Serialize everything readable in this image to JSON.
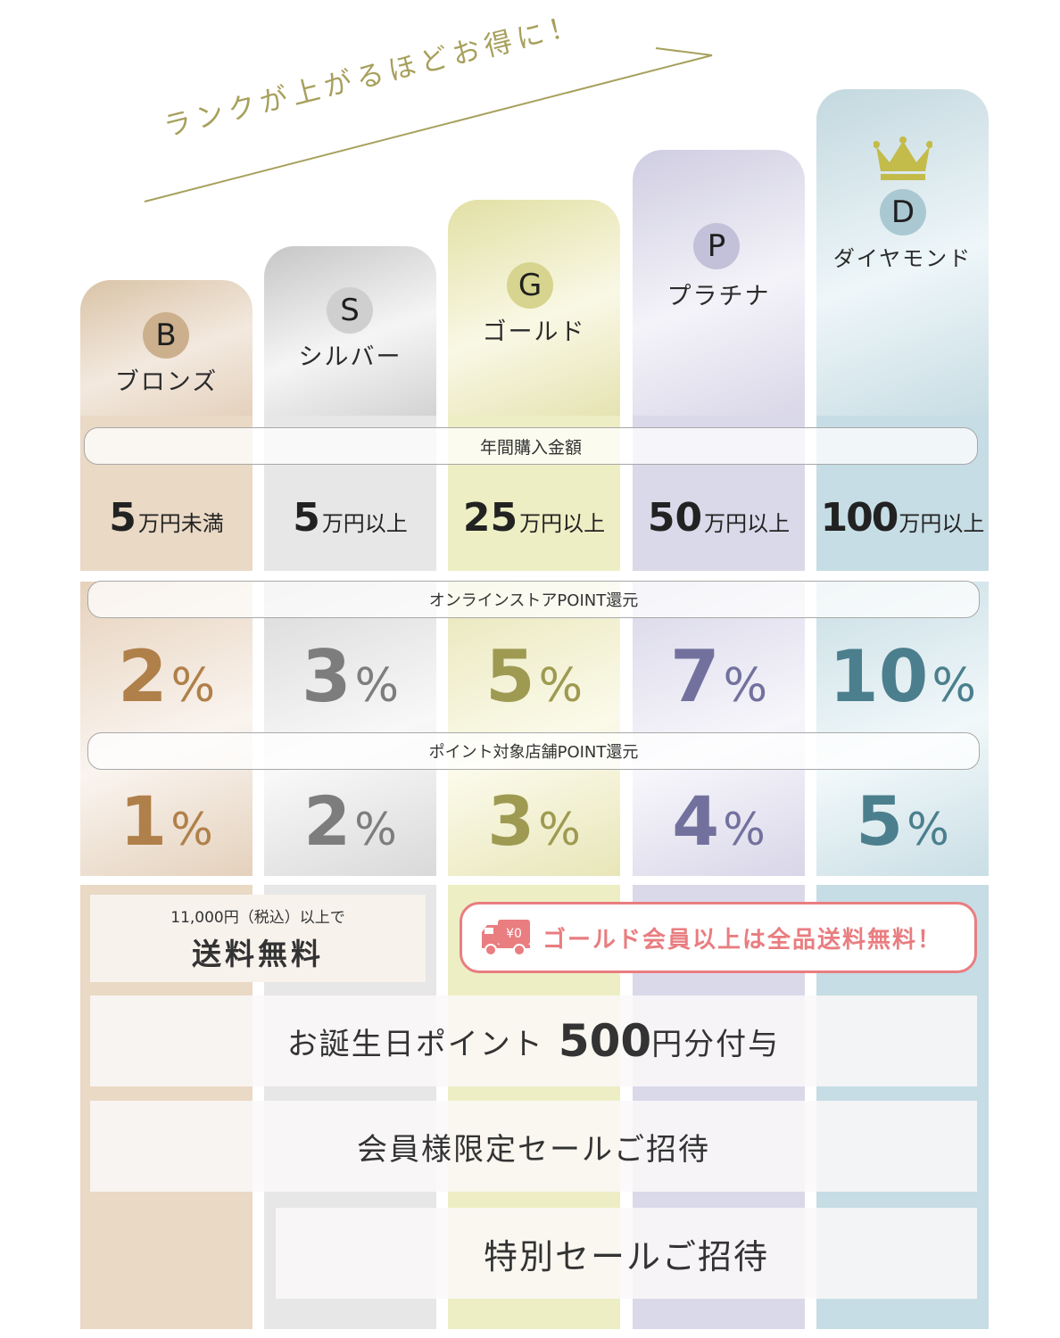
{
  "headline": "ランクが上がるほどお得に！",
  "colors": {
    "bronze_text": "#b0804a",
    "silver_text": "#7d7d7d",
    "gold_text": "#9e9a52",
    "platinum_text": "#72719e",
    "diamond_text": "#4b7f8d",
    "accent_red": "#e97d80",
    "crown": "#c3bb4a"
  },
  "tiers": [
    {
      "letter": "B",
      "name": "ブロンズ",
      "amount_num": "5",
      "amount_unit": "万円未満",
      "online_num": "2",
      "store_num": "1"
    },
    {
      "letter": "S",
      "name": "シルバー",
      "amount_num": "5",
      "amount_unit": "万円以上",
      "online_num": "3",
      "store_num": "2"
    },
    {
      "letter": "G",
      "name": "ゴールド",
      "amount_num": "25",
      "amount_unit": "万円以上",
      "online_num": "5",
      "store_num": "3"
    },
    {
      "letter": "P",
      "name": "プラチナ",
      "amount_num": "50",
      "amount_unit": "万円以上",
      "online_num": "7",
      "store_num": "4"
    },
    {
      "letter": "D",
      "name": "ダイヤモンド",
      "amount_num": "100",
      "amount_unit": "万円以上",
      "online_num": "10",
      "store_num": "5"
    }
  ],
  "percent_symbol": "%",
  "labels": {
    "annual": "年間購入金額",
    "online": "オンラインストアPOINT還元",
    "store": "ポイント対象店舗POINT還元"
  },
  "free_shipping": {
    "small": "11,000円（税込）以上で",
    "big": "送料無料"
  },
  "gold_free": {
    "truck_label": "¥0",
    "text": "ゴールド会員以上は全品送料無料！"
  },
  "birthday": {
    "before": "お誕生日ポイント",
    "amount": "500",
    "after": "円分付与"
  },
  "member_sale": "会員様限定セールご招待",
  "special_sale": "特別セールご招待"
}
